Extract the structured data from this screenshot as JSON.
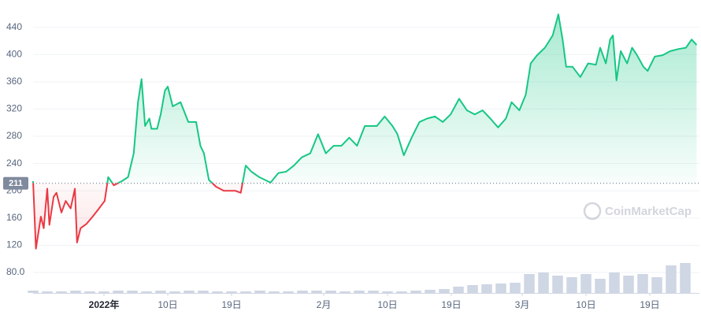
{
  "chart_data": {
    "type": "line",
    "watermark": "CoinMarketCap",
    "baseline": 211,
    "x": [
      0,
      0.4,
      1.1,
      1.5,
      2,
      2.3,
      2.9,
      3.3,
      4,
      4.6,
      5.3,
      5.9,
      6.2,
      6.7,
      7.5,
      8.4,
      9.3,
      10.1,
      10.6,
      11.4,
      12.5,
      13.4,
      14.2,
      14.8,
      15.3,
      15.8,
      16.4,
      16.7,
      17.5,
      18,
      18.6,
      19,
      19.7,
      20.8,
      21.9,
      23,
      23.6,
      24.1,
      24.8,
      25.8,
      26.9,
      28.5,
      29.3,
      30,
      30.8,
      31.9,
      33.5,
      34.6,
      35.7,
      36.8,
      37.9,
      39.1,
      40.2,
      41.3,
      42.4,
      43.5,
      44.6,
      45.7,
      46.8,
      48.5,
      49.6,
      50.7,
      51.4,
      52.3,
      53.4,
      54.5,
      55.6,
      56.7,
      57.8,
      58.9,
      60.1,
      61.2,
      62.3,
      63.4,
      64.5,
      65.6,
      66.7,
      67.5,
      68.6,
      69.5,
      70.2,
      71.1,
      72.2,
      73.3,
      74.1,
      74.7,
      75.2,
      76.1,
      77.2,
      78.3,
      79.4,
      80,
      80.8,
      81.4,
      81.8,
      82.3,
      82.9,
      83.8,
      84.5,
      85.2,
      86.1,
      86.7,
      87.7,
      88.8,
      89.9,
      91,
      92.1,
      92.9,
      93.6
    ],
    "values": [
      214,
      115,
      162,
      145,
      203,
      150,
      191,
      197,
      168,
      185,
      174,
      203,
      124,
      145,
      151,
      162,
      174,
      185,
      220,
      208,
      214,
      220,
      255,
      330,
      364,
      295,
      306,
      291,
      291,
      312,
      347,
      353,
      324,
      330,
      301,
      301,
      266,
      255,
      216,
      206,
      200,
      200,
      197,
      237,
      228,
      220,
      212,
      226,
      228,
      237,
      249,
      255,
      283,
      255,
      266,
      266,
      278,
      266,
      295,
      295,
      309,
      295,
      283,
      252,
      278,
      301,
      306,
      309,
      301,
      312,
      335,
      318,
      312,
      318,
      306,
      293,
      306,
      330,
      318,
      341,
      387,
      399,
      410,
      428,
      459,
      422,
      382,
      382,
      367,
      387,
      385,
      410,
      387,
      422,
      428,
      362,
      405,
      387,
      410,
      399,
      382,
      376,
      397,
      399,
      405,
      408,
      410,
      422,
      414
    ],
    "volume": {
      "x": [
        0,
        2,
        4,
        6,
        8,
        10,
        12,
        14,
        16,
        18,
        20,
        22,
        24,
        26,
        28,
        30,
        32,
        34,
        36,
        38,
        40,
        42,
        44,
        46,
        48,
        50,
        52,
        54,
        56,
        58,
        60,
        62,
        64,
        66,
        68,
        70,
        72,
        74,
        76,
        78,
        80,
        82,
        84,
        86,
        88,
        90,
        92
      ],
      "values": [
        3,
        2,
        2,
        3,
        2,
        2,
        3,
        3,
        2,
        3,
        2,
        3,
        3,
        2,
        2,
        2,
        3,
        2,
        2,
        3,
        3,
        3,
        2,
        3,
        3,
        2,
        2,
        3,
        4,
        5,
        8,
        10,
        11,
        12,
        13,
        24,
        26,
        22,
        20,
        24,
        18,
        26,
        22,
        24,
        20,
        35,
        38
      ]
    },
    "xlim": [
      0,
      94
    ],
    "ylim": [
      50,
      480
    ],
    "xticks": [
      {
        "value": 10,
        "label": "2022年"
      },
      {
        "value": 19,
        "label": "10日"
      },
      {
        "value": 28,
        "label": "19日"
      },
      {
        "value": 41,
        "label": "2月"
      },
      {
        "value": 50,
        "label": "10日"
      },
      {
        "value": 59,
        "label": "19日"
      },
      {
        "value": 69,
        "label": "3月"
      },
      {
        "value": 78,
        "label": "10日"
      },
      {
        "value": 87,
        "label": "19日"
      }
    ],
    "yticks": [
      {
        "value": 80,
        "label": "80.0"
      },
      120,
      160,
      200,
      240,
      280,
      320,
      360,
      400,
      440
    ],
    "grid": true,
    "up_color": "#16c784",
    "down_color": "#ea3943"
  }
}
